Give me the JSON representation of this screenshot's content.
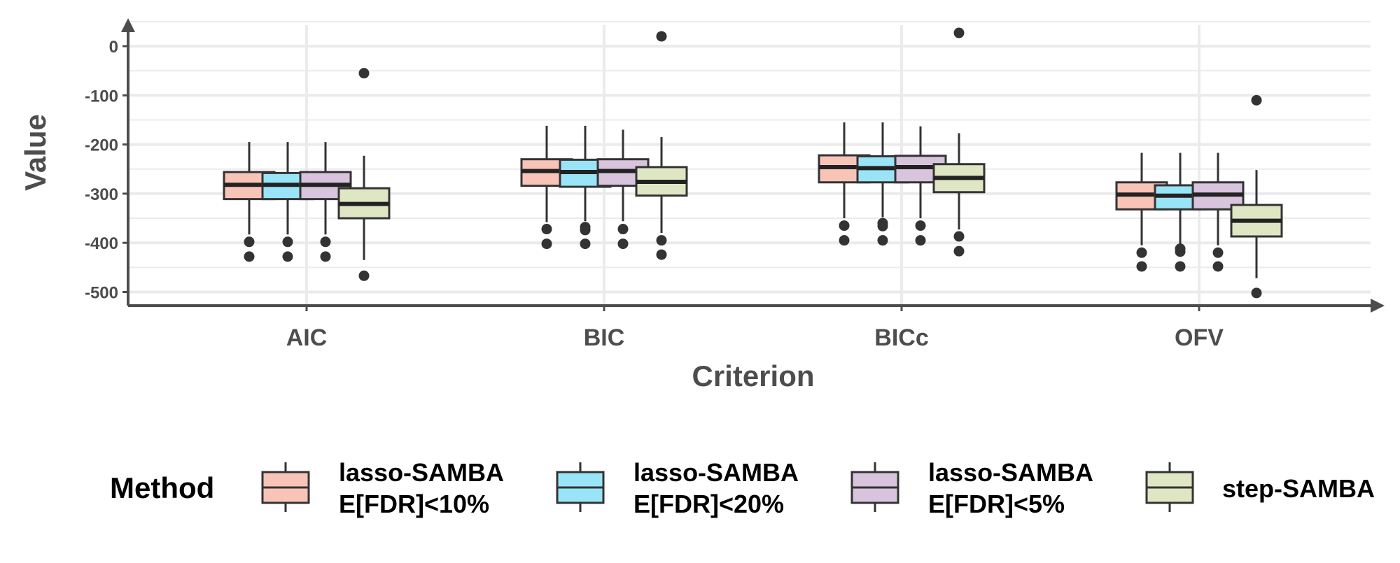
{
  "chart_data": {
    "type": "box",
    "xlabel": "Criterion",
    "ylabel": "Value",
    "ylim": [
      -528,
      50
    ],
    "yticks": [
      0,
      -100,
      -200,
      -300,
      -400,
      -500
    ],
    "ytick_labels": [
      "0",
      "-100",
      "-200",
      "-300",
      "-400",
      "-500"
    ],
    "categories": [
      "AIC",
      "BIC",
      "BICc",
      "OFV"
    ],
    "grid": true,
    "legend": {
      "title": "Method",
      "position": "bottom",
      "entries": [
        {
          "line1": "lasso-SAMBA",
          "line2": "E[FDR]<10%"
        },
        {
          "line1": "lasso-SAMBA",
          "line2": "E[FDR]<20%"
        },
        {
          "line1": "lasso-SAMBA",
          "line2": "E[FDR]<5%"
        },
        {
          "line1": "step-SAMBA",
          "line2": ""
        }
      ]
    },
    "series": [
      {
        "name": "lasso-SAMBA E[FDR]<10%",
        "color": "#f8c4b8",
        "boxes": [
          {
            "whisker_low": -383,
            "q1": -311,
            "median": -282,
            "q3": -256,
            "whisker_high": -195,
            "outliers": [
              -398,
              -428
            ]
          },
          {
            "whisker_low": -358,
            "q1": -284,
            "median": -254,
            "q3": -230,
            "whisker_high": -162,
            "outliers": [
              -372,
              -402
            ]
          },
          {
            "whisker_low": -350,
            "q1": -277,
            "median": -246,
            "q3": -222,
            "whisker_high": -155,
            "outliers": [
              -365,
              -395
            ]
          },
          {
            "whisker_low": -405,
            "q1": -332,
            "median": -302,
            "q3": -277,
            "whisker_high": -217,
            "outliers": [
              -420,
              -448
            ]
          }
        ]
      },
      {
        "name": "lasso-SAMBA E[FDR]<20%",
        "color": "#9ae4f8",
        "boxes": [
          {
            "whisker_low": -383,
            "q1": -311,
            "median": -282,
            "q3": -258,
            "whisker_high": -195,
            "outliers": [
              -398,
              -428
            ]
          },
          {
            "whisker_low": -356,
            "q1": -286,
            "median": -256,
            "q3": -231,
            "whisker_high": -162,
            "outliers": [
              -368,
              -374,
              -402
            ]
          },
          {
            "whisker_low": -348,
            "q1": -277,
            "median": -248,
            "q3": -224,
            "whisker_high": -155,
            "outliers": [
              -360,
              -366,
              -395
            ]
          },
          {
            "whisker_low": -403,
            "q1": -332,
            "median": -304,
            "q3": -283,
            "whisker_high": -217,
            "outliers": [
              -412,
              -418,
              -448
            ]
          }
        ]
      },
      {
        "name": "lasso-SAMBA E[FDR]<5%",
        "color": "#d8c4dc",
        "boxes": [
          {
            "whisker_low": -383,
            "q1": -311,
            "median": -282,
            "q3": -256,
            "whisker_high": -195,
            "outliers": [
              -398,
              -428
            ]
          },
          {
            "whisker_low": -356,
            "q1": -284,
            "median": -254,
            "q3": -230,
            "whisker_high": -170,
            "outliers": [
              -372,
              -402
            ]
          },
          {
            "whisker_low": -350,
            "q1": -277,
            "median": -246,
            "q3": -223,
            "whisker_high": -163,
            "outliers": [
              -365,
              -395
            ]
          },
          {
            "whisker_low": -405,
            "q1": -332,
            "median": -302,
            "q3": -277,
            "whisker_high": -217,
            "outliers": [
              -420,
              -448
            ]
          }
        ]
      },
      {
        "name": "step-SAMBA",
        "color": "#dfe6c4",
        "boxes": [
          {
            "whisker_low": -435,
            "q1": -350,
            "median": -321,
            "q3": -289,
            "whisker_high": -223,
            "outliers": [
              -55,
              -467
            ]
          },
          {
            "whisker_low": -380,
            "q1": -304,
            "median": -276,
            "q3": -246,
            "whisker_high": -185,
            "outliers": [
              20,
              -395,
              -424
            ]
          },
          {
            "whisker_low": -373,
            "q1": -297,
            "median": -268,
            "q3": -240,
            "whisker_high": -177,
            "outliers": [
              27,
              -387,
              -417
            ]
          },
          {
            "whisker_low": -472,
            "q1": -387,
            "median": -355,
            "q3": -323,
            "whisker_high": -252,
            "outliers": [
              -110,
              -502
            ]
          }
        ]
      }
    ]
  }
}
